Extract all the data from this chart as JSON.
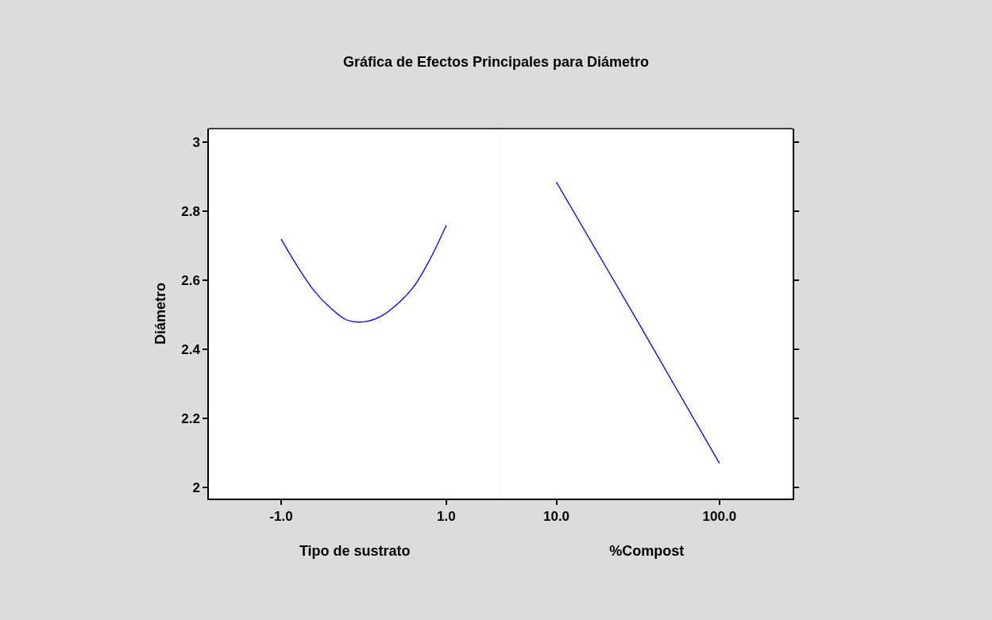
{
  "chart_data": [
    {
      "type": "line",
      "title": "Gráfica de Efectos Principales para Diámetro",
      "ylabel": "Diámetro",
      "xlabel": "Tipo de sustrato",
      "series": [
        {
          "color": "#0000ff",
          "x": [
            -1,
            -0.8,
            -0.6,
            -0.4,
            -0.2,
            0,
            0.2,
            0.4,
            0.6,
            0.8,
            1
          ],
          "values": [
            2.72,
            2.64,
            2.57,
            2.52,
            2.485,
            2.48,
            2.495,
            2.53,
            2.58,
            2.66,
            2.76
          ]
        }
      ],
      "xlim": [
        -1.875,
        1.66
      ],
      "xticks": [
        {
          "value": -1,
          "label": "-1.0"
        },
        {
          "value": 1,
          "label": "1.0"
        }
      ],
      "ylim": [
        1.968,
        3.04
      ],
      "yticks": [
        2,
        {
          "value": 2.2,
          "label": "2.2"
        },
        {
          "value": 2.4,
          "label": "2.4"
        },
        {
          "value": 2.6,
          "label": "2.6"
        },
        {
          "value": 2.8,
          "label": "2.8"
        },
        3
      ],
      "grid": false,
      "marker": "none",
      "line_style": "solid"
    },
    {
      "type": "line",
      "xlabel": "%Compost",
      "series": [
        {
          "color": "#0000ff",
          "x": [
            10,
            55,
            100
          ],
          "values": [
            2.885,
            2.48,
            2.07
          ]
        }
      ],
      "xlim": [
        -20.7,
        140.4
      ],
      "xticks": [
        {
          "value": 10,
          "label": "10.0"
        },
        {
          "value": 100,
          "label": "100.0"
        }
      ],
      "ylim": [
        1.968,
        3.04
      ],
      "yticks": [
        {
          "value": 2,
          "label": null
        },
        {
          "value": 2.2,
          "label": null
        },
        {
          "value": 2.4,
          "label": null
        },
        {
          "value": 2.6,
          "label": null
        },
        {
          "value": 2.8,
          "label": null
        },
        {
          "value": 3,
          "label": null
        }
      ],
      "tick_labels": "x",
      "grid": false,
      "marker": "none",
      "line_style": "solid"
    }
  ]
}
